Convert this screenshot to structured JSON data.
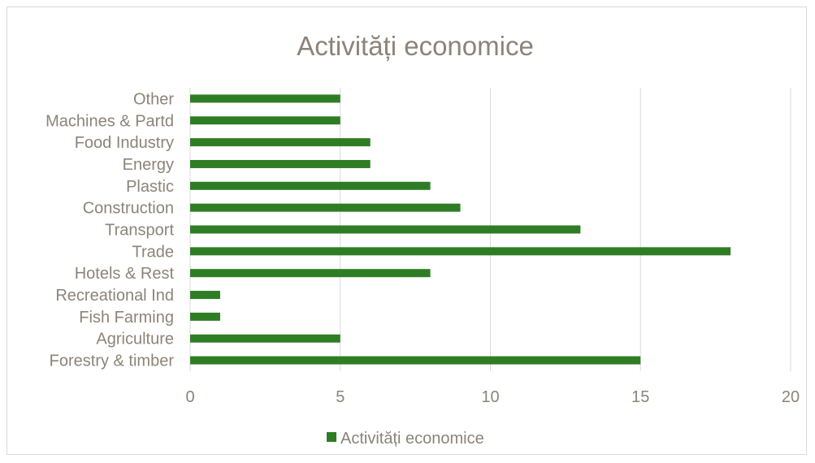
{
  "chart_data": {
    "type": "bar",
    "orientation": "horizontal",
    "title": "Activități economice",
    "categories": [
      "Other",
      "Machines & Partd",
      "Food Industry",
      "Energy",
      "Plastic",
      "Construction",
      "Transport",
      "Trade",
      "Hotels & Rest",
      "Recreational Ind",
      "Fish Farming",
      "Agriculture",
      "Forestry & timber"
    ],
    "series": [
      {
        "name": "Activități economice",
        "values": [
          5,
          5,
          6,
          6,
          8,
          9,
          13,
          18,
          8,
          1,
          1,
          5,
          15
        ],
        "color": "#2e7d24"
      }
    ],
    "xlim": [
      0,
      20
    ],
    "xticks": [
      "0",
      "5",
      "10",
      "15",
      "20"
    ],
    "grid": "vertical",
    "legend": "bottom"
  }
}
